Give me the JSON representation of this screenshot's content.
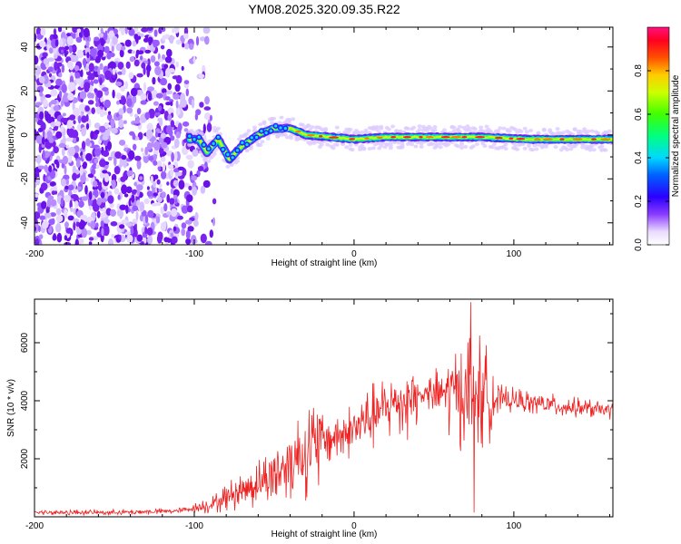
{
  "figure": {
    "title": "YM08.2025.320.09.35.R22"
  },
  "chart_data": [
    {
      "type": "heatmap",
      "xlabel": "Height of straight line (km)",
      "ylabel": "Frequency (Hz)",
      "xlim": [
        -200,
        162
      ],
      "ylim": [
        -50,
        49
      ],
      "xticks": [
        -200,
        -100,
        0,
        100
      ],
      "yticks": [
        -40,
        -20,
        0,
        20,
        40
      ],
      "colorbar": {
        "label": "Normalized spectral amplitude",
        "range": [
          0,
          1
        ],
        "ticks": [
          0.0,
          0.2,
          0.4,
          0.6,
          0.8
        ]
      },
      "noise_region_x": [
        -200,
        -95
      ],
      "signal_trace": [
        {
          "x": -103,
          "y": -2
        },
        {
          "x": -97,
          "y": -2
        },
        {
          "x": -92,
          "y": -8
        },
        {
          "x": -85,
          "y": -2
        },
        {
          "x": -78,
          "y": -11
        },
        {
          "x": -70,
          "y": -5
        },
        {
          "x": -60,
          "y": 0
        },
        {
          "x": -50,
          "y": 3
        },
        {
          "x": -40,
          "y": 3
        },
        {
          "x": -30,
          "y": 0
        },
        {
          "x": -15,
          "y": -1
        },
        {
          "x": 0,
          "y": -2
        },
        {
          "x": 20,
          "y": -1
        },
        {
          "x": 50,
          "y": -1
        },
        {
          "x": 80,
          "y": -1
        },
        {
          "x": 110,
          "y": -2
        },
        {
          "x": 140,
          "y": -2
        },
        {
          "x": 162,
          "y": -2
        }
      ]
    },
    {
      "type": "line",
      "xlabel": "Height of straight line (km)",
      "ylabel": "SNR (10 * v/v)",
      "xlim": [
        -200,
        162
      ],
      "ylim": [
        0,
        7500
      ],
      "xticks": [
        -200,
        -100,
        0,
        100
      ],
      "yticks": [
        2000,
        4000,
        6000
      ],
      "color": "#ee2222",
      "envelope": [
        {
          "x": -200,
          "y": 150
        },
        {
          "x": -150,
          "y": 150
        },
        {
          "x": -110,
          "y": 200
        },
        {
          "x": -90,
          "y": 400
        },
        {
          "x": -75,
          "y": 800
        },
        {
          "x": -55,
          "y": 1300
        },
        {
          "x": -40,
          "y": 1900
        },
        {
          "x": -20,
          "y": 2600
        },
        {
          "x": 0,
          "y": 3000
        },
        {
          "x": 10,
          "y": 3400
        },
        {
          "x": 25,
          "y": 3900
        },
        {
          "x": 40,
          "y": 4200
        },
        {
          "x": 60,
          "y": 4300
        },
        {
          "x": 80,
          "y": 4200
        },
        {
          "x": 100,
          "y": 4000
        },
        {
          "x": 130,
          "y": 3800
        },
        {
          "x": 162,
          "y": 3650
        }
      ],
      "extremes": {
        "max_y": 7400,
        "max_x": 73,
        "min_y": 150,
        "min_x": 75
      }
    }
  ]
}
